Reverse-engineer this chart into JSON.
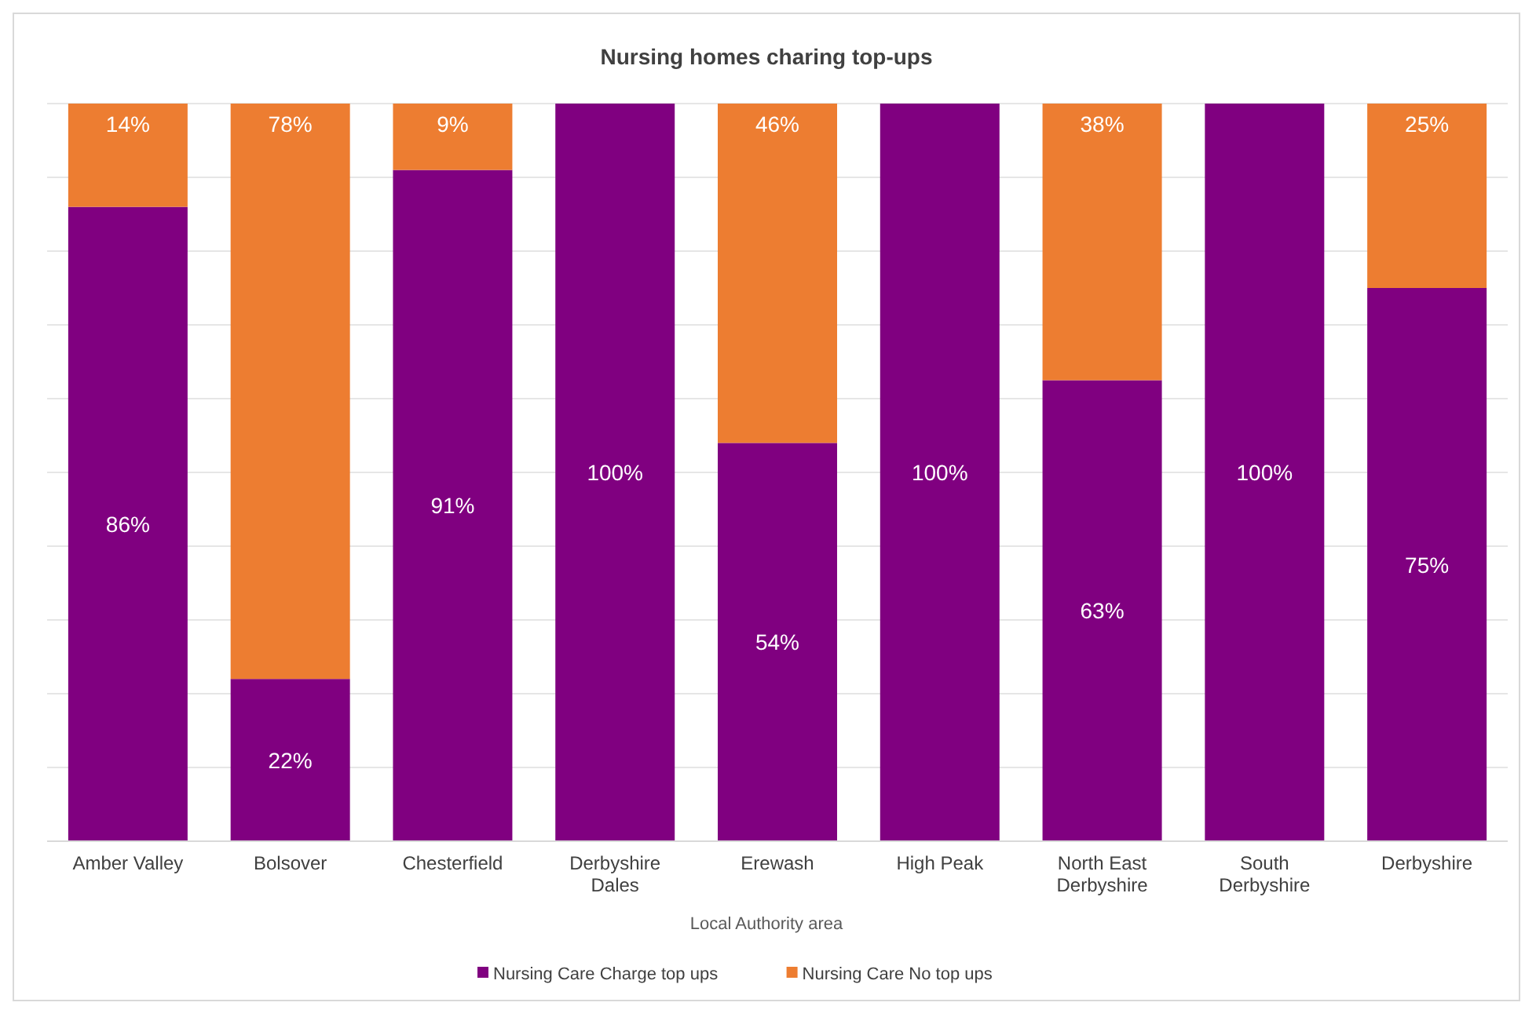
{
  "chart_data": {
    "type": "bar",
    "title": "Nursing homes charing top-ups",
    "xlabel": "Local Authority area",
    "categories": [
      "Amber Valley",
      "Bolsover",
      "Chesterfield",
      "Derbyshire Dales",
      "Erewash",
      "High Peak",
      "North East Derbyshire",
      "South Derbyshire",
      "Derbyshire"
    ],
    "stacked": true,
    "ylim": [
      0,
      100
    ],
    "yticks": [
      {
        "value": 0,
        "label": null
      },
      {
        "value": 10,
        "label": null
      },
      {
        "value": 20,
        "label": null
      },
      {
        "value": 30,
        "label": null
      },
      {
        "value": 40,
        "label": null
      },
      {
        "value": 50,
        "label": null
      },
      {
        "value": 60,
        "label": null
      },
      {
        "value": 70,
        "label": null
      },
      {
        "value": 80,
        "label": null
      },
      {
        "value": 90,
        "label": null
      },
      {
        "value": 100,
        "label": null
      }
    ],
    "tick_labels": "x",
    "grid": "y",
    "legend": "bottom",
    "series": [
      {
        "name": "Nursing Care Charge top ups",
        "color": "#800080",
        "values": [
          86,
          22,
          91,
          100,
          54,
          100,
          62.5,
          100,
          75
        ],
        "value_labels": [
          "86%",
          "22%",
          "91%",
          "100%",
          "54%",
          "100%",
          "63%",
          "100%",
          "75%"
        ]
      },
      {
        "name": "Nursing Care No top ups",
        "color": "#ed7d31",
        "values": [
          14,
          78,
          9,
          0,
          46,
          0,
          37.5,
          0,
          25
        ],
        "value_labels": [
          "14%",
          "78%",
          "9%",
          null,
          "46%",
          null,
          "38%",
          null,
          "25%"
        ]
      }
    ]
  }
}
